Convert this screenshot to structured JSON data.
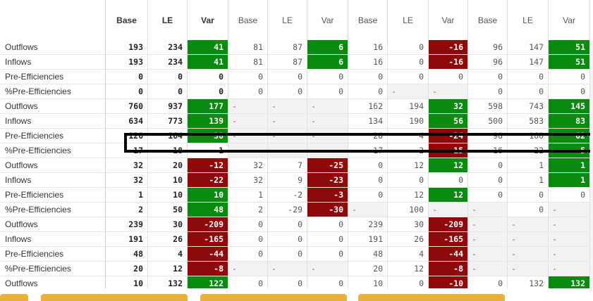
{
  "table": {
    "headers": [
      "Base",
      "LE",
      "Var",
      "Base",
      "LE",
      "Var",
      "Base",
      "LE",
      "Var",
      "Base",
      "LE",
      "Var"
    ],
    "rows": [
      {
        "label": "Outflows",
        "cells": [
          [
            "193",
            "b"
          ],
          [
            "234",
            "b"
          ],
          [
            "41",
            "g"
          ],
          [
            "81",
            ""
          ],
          [
            "87",
            ""
          ],
          [
            "6",
            "g"
          ],
          [
            "16",
            ""
          ],
          [
            "0",
            ""
          ],
          [
            "-16",
            "r"
          ],
          [
            "96",
            ""
          ],
          [
            "147",
            ""
          ],
          [
            "51",
            "g"
          ]
        ]
      },
      {
        "label": "Inflows",
        "cells": [
          [
            "193",
            "b"
          ],
          [
            "234",
            "b"
          ],
          [
            "41",
            "g"
          ],
          [
            "81",
            ""
          ],
          [
            "87",
            ""
          ],
          [
            "6",
            "g"
          ],
          [
            "16",
            ""
          ],
          [
            "0",
            ""
          ],
          [
            "-16",
            "r"
          ],
          [
            "96",
            ""
          ],
          [
            "147",
            ""
          ],
          [
            "51",
            "g"
          ]
        ]
      },
      {
        "label": "Pre-Efficiencies",
        "cells": [
          [
            "0",
            "b"
          ],
          [
            "0",
            "b"
          ],
          [
            "0",
            "b"
          ],
          [
            "0",
            ""
          ],
          [
            "0",
            ""
          ],
          [
            "0",
            ""
          ],
          [
            "0",
            ""
          ],
          [
            "0",
            ""
          ],
          [
            "0",
            ""
          ],
          [
            "0",
            ""
          ],
          [
            "0",
            ""
          ],
          [
            "0",
            ""
          ]
        ]
      },
      {
        "label": "%Pre-Efficiencies",
        "cells": [
          [
            "0",
            "b"
          ],
          [
            "0",
            "b"
          ],
          [
            "0",
            "b"
          ],
          [
            "0",
            ""
          ],
          [
            "0",
            ""
          ],
          [
            "0",
            ""
          ],
          [
            "0",
            ""
          ],
          [
            "-",
            "d"
          ],
          [
            "-",
            "d"
          ],
          [
            "0",
            ""
          ],
          [
            "0",
            ""
          ],
          [
            "0",
            ""
          ]
        ]
      },
      {
        "label": "Outflows",
        "cells": [
          [
            "760",
            "b"
          ],
          [
            "937",
            "b"
          ],
          [
            "177",
            "g"
          ],
          [
            "-",
            "d"
          ],
          [
            "-",
            "d"
          ],
          [
            "-",
            "d"
          ],
          [
            "162",
            ""
          ],
          [
            "194",
            ""
          ],
          [
            "32",
            "g"
          ],
          [
            "598",
            ""
          ],
          [
            "743",
            ""
          ],
          [
            "145",
            "g"
          ]
        ]
      },
      {
        "label": "Inflows",
        "cells": [
          [
            "634",
            "b"
          ],
          [
            "773",
            "b"
          ],
          [
            "139",
            "g"
          ],
          [
            "-",
            "d"
          ],
          [
            "-",
            "d"
          ],
          [
            "-",
            "d"
          ],
          [
            "134",
            ""
          ],
          [
            "190",
            ""
          ],
          [
            "56",
            "g"
          ],
          [
            "500",
            ""
          ],
          [
            "583",
            ""
          ],
          [
            "83",
            "g"
          ]
        ]
      },
      {
        "label": "Pre-Efficiencies",
        "cells": [
          [
            "126",
            "b"
          ],
          [
            "164",
            "b"
          ],
          [
            "38",
            "g"
          ],
          [
            "-",
            "d"
          ],
          [
            "-",
            "d"
          ],
          [
            "-",
            "d"
          ],
          [
            "28",
            ""
          ],
          [
            "4",
            ""
          ],
          [
            "-24",
            "r"
          ],
          [
            "98",
            ""
          ],
          [
            "160",
            ""
          ],
          [
            "62",
            "g"
          ]
        ]
      },
      {
        "label": "%Pre-Efficiencies",
        "cells": [
          [
            "17",
            "b"
          ],
          [
            "18",
            "b"
          ],
          [
            "1",
            "b"
          ],
          [
            "-",
            "d"
          ],
          [
            "-",
            "d"
          ],
          [
            "-",
            "d"
          ],
          [
            "17",
            ""
          ],
          [
            "2",
            ""
          ],
          [
            "-15",
            "r"
          ],
          [
            "16",
            ""
          ],
          [
            "22",
            ""
          ],
          [
            "5",
            "g"
          ]
        ]
      },
      {
        "label": "Outflows",
        "cells": [
          [
            "32",
            "b"
          ],
          [
            "20",
            "b"
          ],
          [
            "-12",
            "r"
          ],
          [
            "32",
            ""
          ],
          [
            "7",
            ""
          ],
          [
            "-25",
            "r"
          ],
          [
            "0",
            ""
          ],
          [
            "12",
            ""
          ],
          [
            "12",
            "g"
          ],
          [
            "0",
            ""
          ],
          [
            "1",
            ""
          ],
          [
            "1",
            "g"
          ]
        ]
      },
      {
        "label": "Inflows",
        "cells": [
          [
            "32",
            "b"
          ],
          [
            "10",
            "b"
          ],
          [
            "-22",
            "r"
          ],
          [
            "32",
            ""
          ],
          [
            "9",
            ""
          ],
          [
            "-23",
            "r"
          ],
          [
            "0",
            ""
          ],
          [
            "0",
            ""
          ],
          [
            "0",
            ""
          ],
          [
            "0",
            ""
          ],
          [
            "1",
            ""
          ],
          [
            "1",
            "g"
          ]
        ]
      },
      {
        "label": "Pre-Efficiencies",
        "cells": [
          [
            "1",
            "b"
          ],
          [
            "10",
            "b"
          ],
          [
            "10",
            "g"
          ],
          [
            "1",
            ""
          ],
          [
            "-2",
            ""
          ],
          [
            "-3",
            "r"
          ],
          [
            "0",
            ""
          ],
          [
            "12",
            ""
          ],
          [
            "12",
            "g"
          ],
          [
            "0",
            ""
          ],
          [
            "0",
            ""
          ],
          [
            "0",
            ""
          ]
        ]
      },
      {
        "label": "%Pre-Efficiencies",
        "cells": [
          [
            "2",
            "b"
          ],
          [
            "50",
            "b"
          ],
          [
            "48",
            "g"
          ],
          [
            "2",
            ""
          ],
          [
            "-29",
            ""
          ],
          [
            "-30",
            "r"
          ],
          [
            "-",
            "d"
          ],
          [
            "100",
            ""
          ],
          [
            "-",
            "d"
          ],
          [
            "-",
            "d"
          ],
          [
            "0",
            ""
          ],
          [
            "-",
            "d"
          ]
        ]
      },
      {
        "label": "Outflows",
        "cells": [
          [
            "239",
            "b"
          ],
          [
            "30",
            "b"
          ],
          [
            "-209",
            "r"
          ],
          [
            "0",
            ""
          ],
          [
            "0",
            ""
          ],
          [
            "0",
            ""
          ],
          [
            "239",
            ""
          ],
          [
            "30",
            ""
          ],
          [
            "-209",
            "r"
          ],
          [
            "-",
            "d"
          ],
          [
            "-",
            "d"
          ],
          [
            "-",
            "d"
          ]
        ]
      },
      {
        "label": "Inflows",
        "cells": [
          [
            "191",
            "b"
          ],
          [
            "26",
            "b"
          ],
          [
            "-165",
            "r"
          ],
          [
            "0",
            ""
          ],
          [
            "0",
            ""
          ],
          [
            "0",
            ""
          ],
          [
            "191",
            ""
          ],
          [
            "26",
            ""
          ],
          [
            "-165",
            "r"
          ],
          [
            "-",
            "d"
          ],
          [
            "-",
            "d"
          ],
          [
            "-",
            "d"
          ]
        ]
      },
      {
        "label": "Pre-Efficiencies",
        "cells": [
          [
            "48",
            "b"
          ],
          [
            "4",
            "b"
          ],
          [
            "-44",
            "r"
          ],
          [
            "0",
            ""
          ],
          [
            "0",
            ""
          ],
          [
            "0",
            ""
          ],
          [
            "48",
            ""
          ],
          [
            "4",
            ""
          ],
          [
            "-44",
            "r"
          ],
          [
            "-",
            "d"
          ],
          [
            "-",
            "d"
          ],
          [
            "-",
            "d"
          ]
        ]
      },
      {
        "label": "%Pre-Efficiencies",
        "cells": [
          [
            "20",
            "b"
          ],
          [
            "12",
            "b"
          ],
          [
            "-8",
            "r"
          ],
          [
            "-",
            "d"
          ],
          [
            "-",
            "d"
          ],
          [
            "-",
            "d"
          ],
          [
            "20",
            ""
          ],
          [
            "12",
            ""
          ],
          [
            "-8",
            "r"
          ],
          [
            "-",
            "d"
          ],
          [
            "-",
            "d"
          ],
          [
            "-",
            "d"
          ]
        ]
      },
      {
        "label": "Outflows",
        "cells": [
          [
            "10",
            "b"
          ],
          [
            "132",
            "b"
          ],
          [
            "122",
            "g"
          ],
          [
            "0",
            ""
          ],
          [
            "0",
            ""
          ],
          [
            "0",
            ""
          ],
          [
            "10",
            ""
          ],
          [
            "0",
            ""
          ],
          [
            "-10",
            "r"
          ],
          [
            "0",
            ""
          ],
          [
            "132",
            ""
          ],
          [
            "132",
            "g"
          ]
        ]
      }
    ]
  },
  "colors": {
    "positive": "#0a8a10",
    "negative": "#8e0a0a",
    "highlight_border": "#000000",
    "tab": "#e8b23a"
  }
}
